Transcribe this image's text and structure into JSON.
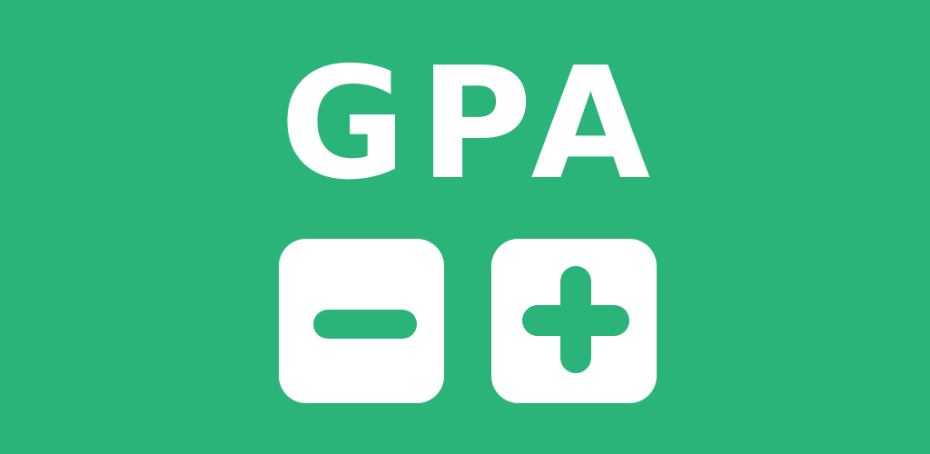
{
  "banner": {
    "title": "GPA",
    "background_color": "#2bb479",
    "foreground_color": "#ffffff"
  },
  "buttons": [
    {
      "name": "minus-button",
      "icon": "minus-icon"
    },
    {
      "name": "plus-button",
      "icon": "plus-icon"
    }
  ]
}
